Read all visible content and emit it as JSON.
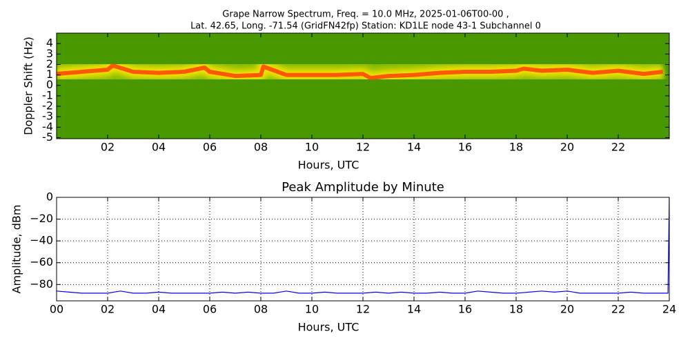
{
  "chart_data": [
    {
      "type": "spectrogram",
      "title": [
        "Grape Narrow Spectrum, Freq. = 10.0 MHz, 2025-01-06T00-00 ,",
        "Lat.  42.65, Long. -71.54 (GridFN42fp) Station: KD1LE node 43-1 Subchannel 0"
      ],
      "xlabel": "Hours, UTC",
      "ylabel": "Doppler Shift (Hz)",
      "xlim": [
        0,
        24
      ],
      "ylim": [
        -5.1,
        5
      ],
      "xticks": [
        {
          "value": 2,
          "label": "02"
        },
        {
          "value": 4,
          "label": "04"
        },
        {
          "value": 6,
          "label": "06"
        },
        {
          "value": 8,
          "label": "08"
        },
        10,
        12,
        14,
        16,
        18,
        20,
        22
      ],
      "yticks": [
        -5,
        -4,
        -3,
        -2,
        -1,
        0,
        1,
        2,
        3,
        4
      ],
      "grid": false,
      "x": [
        0,
        1,
        2,
        2.2,
        3,
        4,
        5,
        5.8,
        6,
        7,
        8,
        8.1,
        9,
        10,
        11,
        12,
        12.3,
        13,
        14,
        15,
        16,
        17,
        18,
        18.3,
        19,
        20,
        21,
        22,
        23,
        23.75
      ],
      "series": [
        {
          "color": "#ff4a00",
          "values": [
            1.1,
            1.3,
            1.5,
            1.9,
            1.3,
            1.2,
            1.3,
            1.7,
            1.3,
            0.9,
            1.0,
            1.8,
            1.0,
            1.0,
            1.0,
            1.1,
            0.7,
            0.9,
            1.0,
            1.2,
            1.3,
            1.3,
            1.4,
            1.6,
            1.4,
            1.5,
            1.2,
            1.4,
            1.1,
            1.3
          ]
        }
      ]
    },
    {
      "type": "line",
      "title": "Peak Amplitude by Minute",
      "xlabel": "Hours, UTC",
      "ylabel": "Amplitude, dBm",
      "xlim": [
        0,
        24
      ],
      "ylim": [
        -95,
        0
      ],
      "xticks": [
        {
          "value": 0,
          "label": "00"
        },
        {
          "value": 2,
          "label": "02"
        },
        {
          "value": 4,
          "label": "04"
        },
        {
          "value": 6,
          "label": "06"
        },
        {
          "value": 8,
          "label": "08"
        },
        10,
        12,
        14,
        16,
        18,
        20,
        22,
        24
      ],
      "yticks": [
        {
          "value": -80,
          "label": "−80"
        },
        {
          "value": -60,
          "label": "−60"
        },
        {
          "value": -40,
          "label": "−40"
        },
        {
          "value": -20,
          "label": "−20"
        },
        0
      ],
      "grid": true,
      "x": [
        0,
        0.5,
        1,
        1.5,
        2,
        2.5,
        3,
        3.5,
        4,
        4.5,
        5,
        5.5,
        6,
        6.5,
        7,
        7.5,
        8,
        8.5,
        9,
        9.5,
        10,
        10.5,
        11,
        11.5,
        12,
        12.5,
        13,
        13.5,
        14,
        14.5,
        15,
        15.5,
        16,
        16.5,
        17,
        17.5,
        18,
        18.5,
        19,
        19.5,
        20,
        20.5,
        21,
        21.5,
        22,
        22.5,
        23,
        23.5,
        23.95,
        24
      ],
      "series": [
        {
          "color": "#0000ff",
          "values": [
            -86,
            -87,
            -88,
            -88,
            -88,
            -86,
            -88,
            -88,
            -87,
            -88,
            -88,
            -88,
            -88,
            -87,
            -88,
            -87,
            -88,
            -88,
            -86,
            -88,
            -88,
            -87,
            -88,
            -88,
            -88,
            -87,
            -88,
            -87,
            -88,
            -88,
            -87,
            -88,
            -88,
            -86,
            -87,
            -88,
            -88,
            -87,
            -86,
            -87,
            -86,
            -88,
            -88,
            -88,
            -88,
            -87,
            -88,
            -88,
            -88,
            0
          ]
        }
      ]
    }
  ]
}
